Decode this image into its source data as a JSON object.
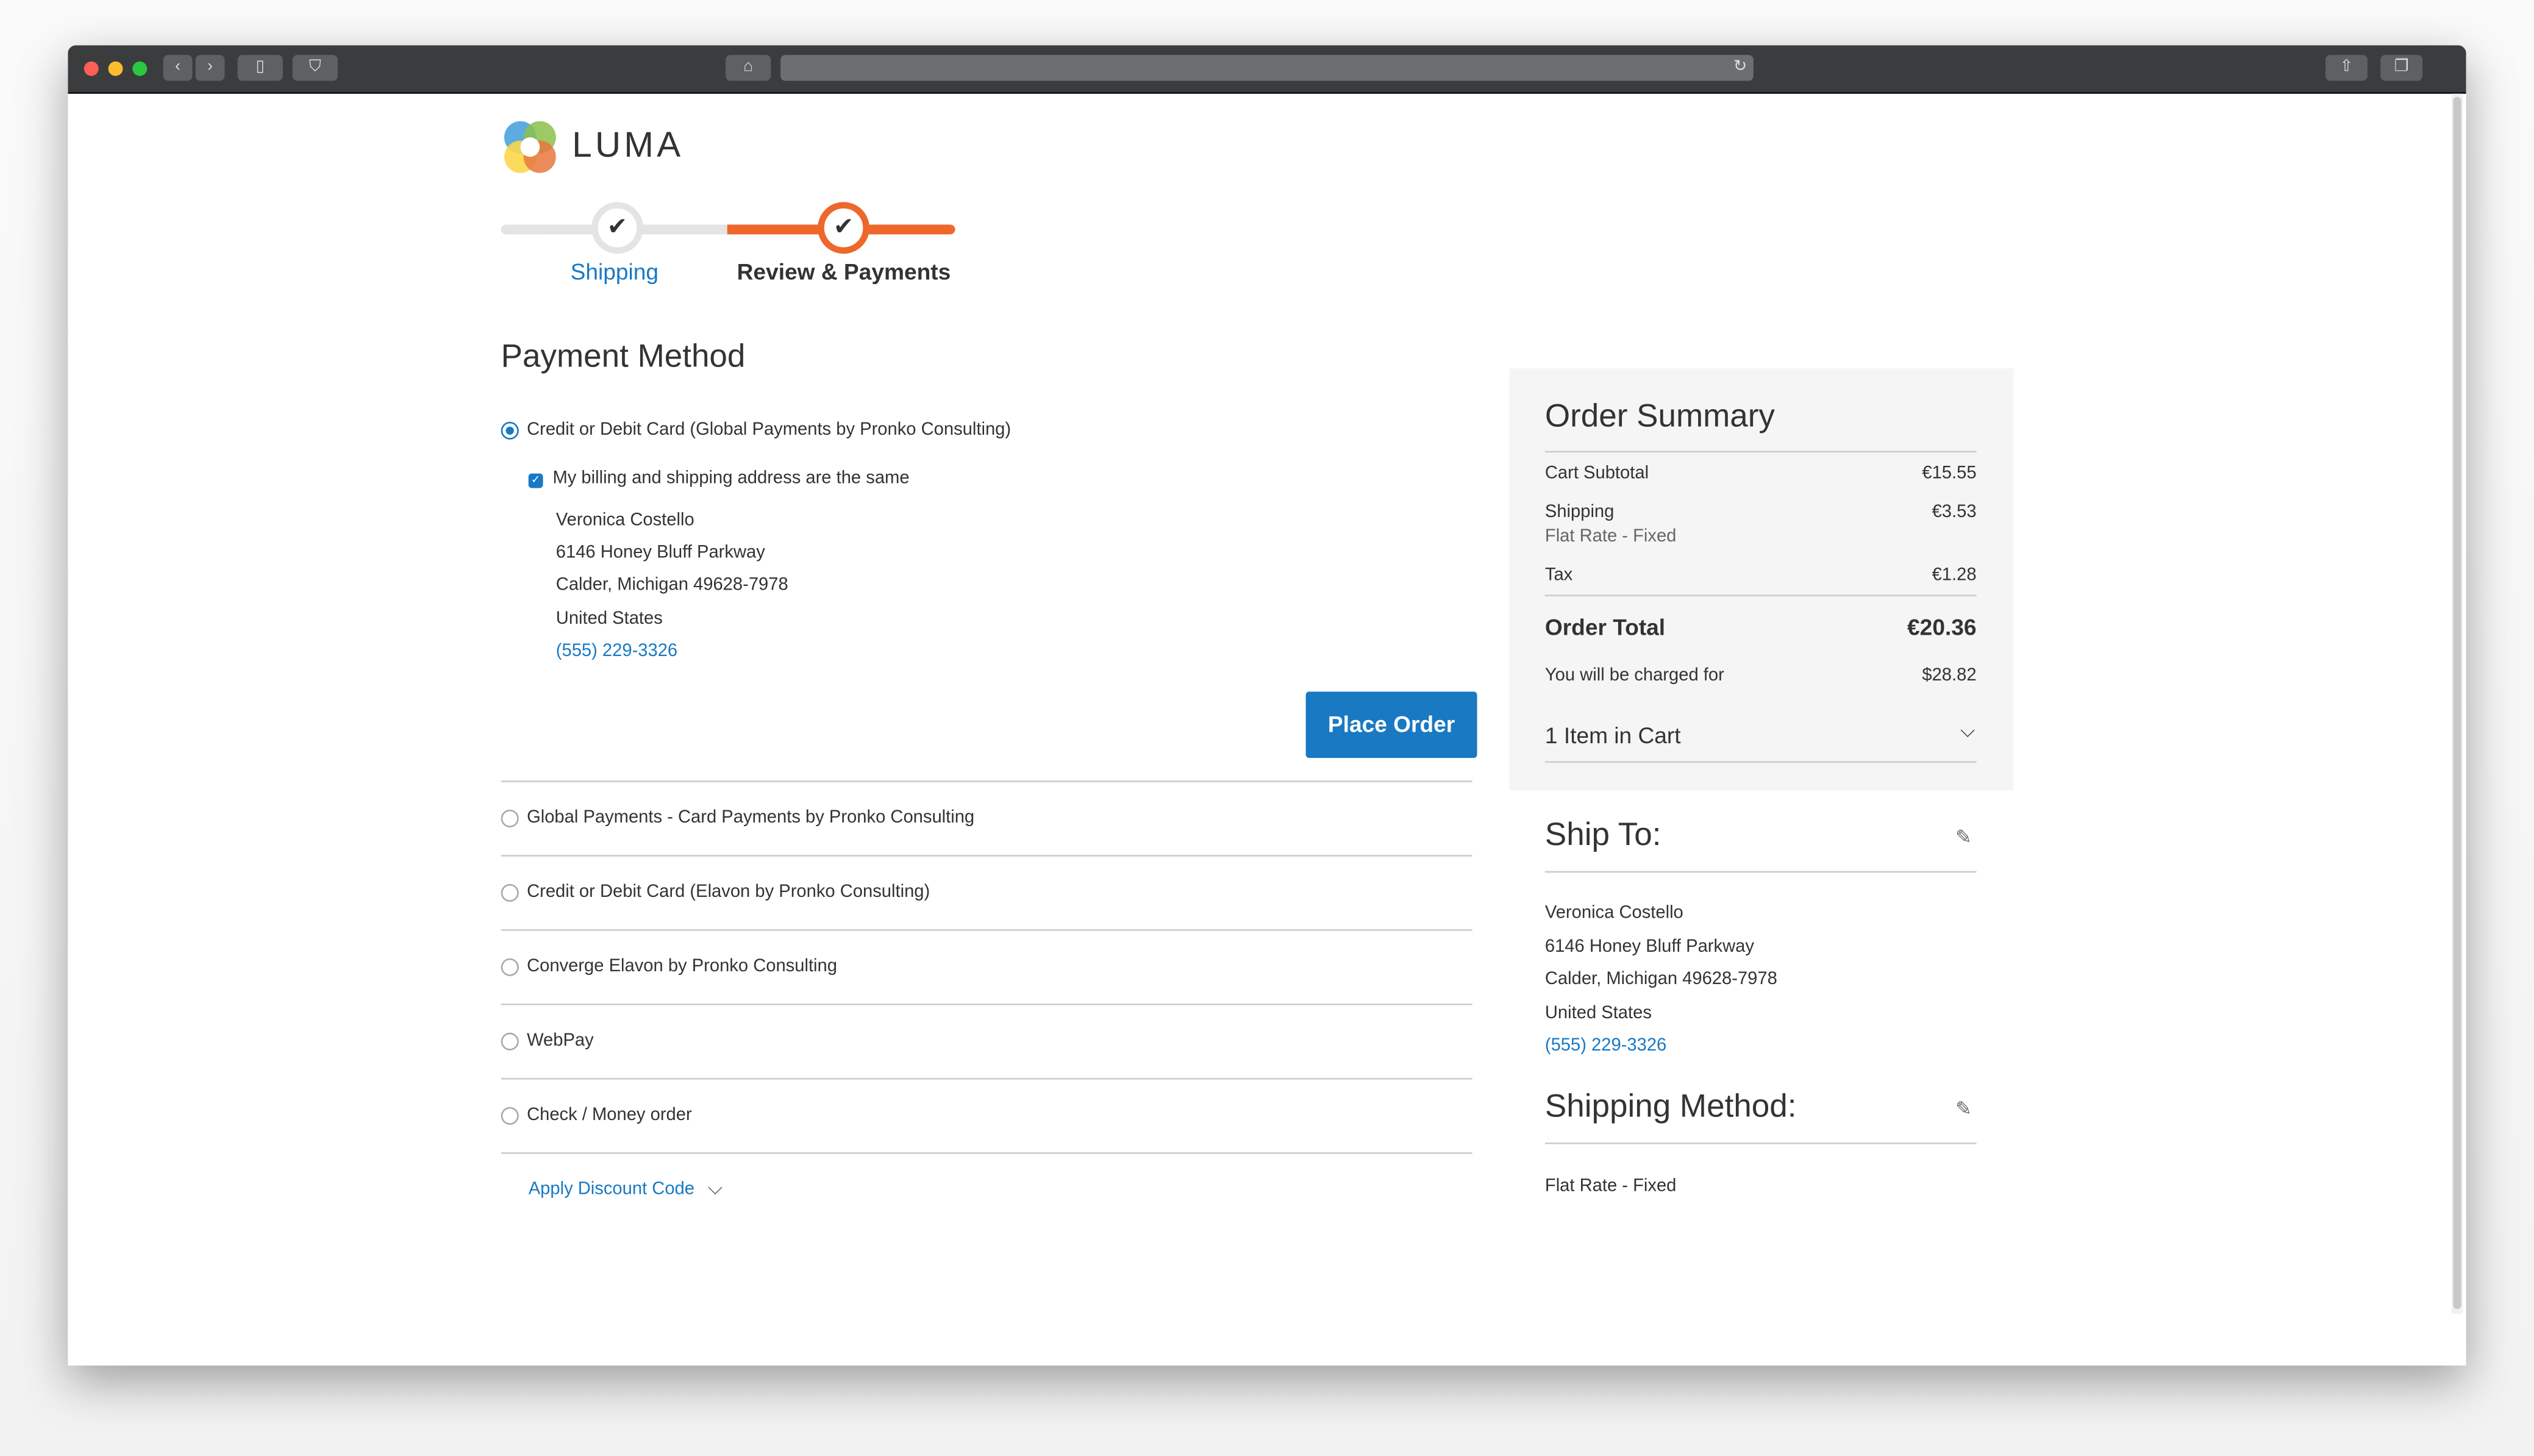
{
  "browser": {
    "url": ""
  },
  "brand": {
    "name": "LUMA"
  },
  "progress": {
    "steps": [
      {
        "label": "Shipping",
        "state": "complete"
      },
      {
        "label": "Review & Payments",
        "state": "active"
      }
    ],
    "colors": {
      "active": "#ee672b",
      "inactive": "#e4e4e4",
      "link": "#1979c3"
    }
  },
  "payment": {
    "title": "Payment Method",
    "selected_method": "Credit or Debit Card (Global Payments by Pronko Consulting)",
    "same_address_label": "My billing and shipping address are the same",
    "same_address_checked": true,
    "billing": {
      "name": "Veronica Costello",
      "street": "6146 Honey Bluff Parkway",
      "city": "Calder, Michigan 49628-7978",
      "country": "United States",
      "phone": "(555) 229-3326"
    },
    "place_order": "Place Order",
    "other_methods": [
      "Global Payments - Card Payments by Pronko Consulting",
      "Credit or Debit Card (Elavon by Pronko Consulting)",
      "Converge Elavon by Pronko Consulting",
      "WebPay",
      "Check / Money order"
    ],
    "discount": "Apply Discount Code"
  },
  "summary": {
    "title": "Order Summary",
    "subtotal_label": "Cart Subtotal",
    "subtotal": "€15.55",
    "shipping_label": "Shipping",
    "shipping_method": "Flat Rate - Fixed",
    "shipping": "€3.53",
    "tax_label": "Tax",
    "tax": "€1.28",
    "total_label": "Order Total",
    "total": "€20.36",
    "charged_label": "You will be charged for",
    "charged": "$28.82",
    "items": "1 Item in Cart"
  },
  "ship_to": {
    "title": "Ship To:",
    "name": "Veronica Costello",
    "street": "6146 Honey Bluff Parkway",
    "city": "Calder, Michigan 49628-7978",
    "country": "United States",
    "phone": "(555) 229-3326"
  },
  "shipping_method": {
    "title": "Shipping Method:",
    "value": "Flat Rate - Fixed"
  }
}
